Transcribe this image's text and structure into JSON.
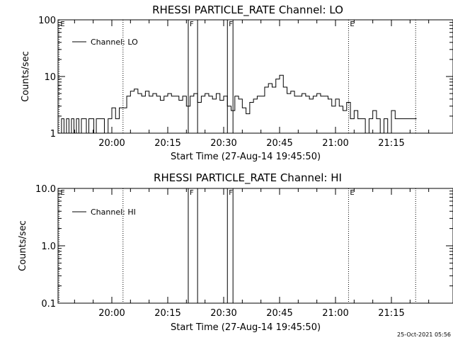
{
  "footer": {
    "timestamp": "25-Oct-2021 05:56"
  },
  "x_range": [
    "19:45:50",
    "21:25:00"
  ],
  "chart_data": [
    {
      "type": "line",
      "title": "RHESSI PARTICLE_RATE Channel: LO",
      "xlabel": "Start Time (27-Aug-14 19:45:50)",
      "ylabel": "Counts/sec",
      "yscale": "log",
      "ylim": [
        1,
        100
      ],
      "ytick_labels": [
        "1",
        "10",
        "100"
      ],
      "ytick_values": [
        1,
        10,
        100
      ],
      "xtick_labels": [
        "20:00",
        "20:15",
        "20:30",
        "20:45",
        "21:00",
        "21:15"
      ],
      "xtick_values": [
        "20:00",
        "20:15",
        "20:30",
        "20:45",
        "21:00",
        "21:15"
      ],
      "legend": {
        "label": "Channel: LO",
        "placement": "top-left"
      },
      "markers": [
        {
          "label": "E",
          "time": "19:45:50",
          "style": "dotted"
        },
        {
          "label": "",
          "time": "20:03:00",
          "style": "dotted"
        },
        {
          "label": "F",
          "time": "20:20:30",
          "style": "solid"
        },
        {
          "label": "",
          "time": "20:23:00",
          "style": "solid"
        },
        {
          "label": "F",
          "time": "20:31:00",
          "style": "solid"
        },
        {
          "label": "",
          "time": "20:32:30",
          "style": "solid"
        },
        {
          "label": "E",
          "time": "21:03:30",
          "style": "dotted"
        },
        {
          "label": "",
          "time": "21:21:30",
          "style": "dotted"
        }
      ],
      "series": [
        {
          "name": "Channel: LO",
          "x": [
            "19:45:50",
            "19:46:30",
            "19:47:10",
            "19:47:50",
            "19:48:30",
            "19:49:10",
            "19:49:50",
            "19:50:30",
            "19:51:10",
            "19:51:50",
            "19:52:30",
            "19:53:10",
            "19:53:50",
            "19:54:30",
            "19:55:10",
            "19:55:50",
            "19:56:30",
            "19:57:10",
            "19:58:00",
            "19:59:00",
            "20:00:00",
            "20:01:00",
            "20:02:00",
            "20:03:00",
            "20:04:00",
            "20:05:00",
            "20:06:00",
            "20:07:00",
            "20:08:00",
            "20:09:00",
            "20:10:00",
            "20:11:00",
            "20:12:00",
            "20:13:00",
            "20:14:00",
            "20:15:00",
            "20:16:00",
            "20:17:00",
            "20:18:00",
            "20:19:00",
            "20:20:00",
            "20:21:00",
            "20:22:00",
            "20:23:00",
            "20:24:00",
            "20:25:00",
            "20:26:00",
            "20:27:00",
            "20:28:00",
            "20:29:00",
            "20:30:00",
            "20:31:00",
            "20:32:00",
            "20:33:00",
            "20:34:00",
            "20:35:00",
            "20:36:00",
            "20:37:00",
            "20:38:00",
            "20:39:00",
            "20:40:00",
            "20:41:00",
            "20:42:00",
            "20:43:00",
            "20:44:00",
            "20:45:00",
            "20:46:00",
            "20:47:00",
            "20:48:00",
            "20:49:00",
            "20:50:00",
            "20:51:00",
            "20:52:00",
            "20:53:00",
            "20:54:00",
            "20:55:00",
            "20:56:00",
            "20:57:00",
            "20:58:00",
            "20:59:00",
            "21:00:00",
            "21:01:00",
            "21:02:00",
            "21:03:00",
            "21:04:00",
            "21:05:00",
            "21:06:00",
            "21:07:00",
            "21:08:00",
            "21:09:00",
            "21:10:00",
            "21:11:00",
            "21:12:00",
            "21:13:00",
            "21:14:00",
            "21:15:00",
            "21:16:00",
            "21:17:00",
            "21:18:00",
            "21:19:00",
            "21:20:00",
            "21:21:00"
          ],
          "y": [
            1.0,
            1.8,
            1.0,
            1.8,
            1.0,
            1.8,
            1.0,
            1.8,
            1.0,
            1.8,
            1.8,
            1.0,
            1.8,
            1.8,
            1.0,
            1.8,
            1.8,
            1.8,
            1.0,
            1.8,
            2.8,
            1.8,
            2.8,
            2.8,
            4.5,
            5.5,
            6.0,
            5.0,
            4.5,
            5.5,
            4.5,
            5.0,
            4.5,
            3.8,
            4.5,
            5.0,
            4.5,
            4.5,
            3.8,
            4.5,
            3.0,
            4.5,
            5.0,
            3.5,
            4.5,
            5.0,
            4.5,
            4.0,
            5.0,
            3.8,
            4.5,
            3.0,
            2.5,
            4.5,
            4.0,
            2.8,
            2.2,
            3.5,
            4.0,
            4.5,
            4.5,
            6.5,
            7.5,
            6.5,
            9.0,
            10.5,
            6.5,
            5.0,
            5.5,
            4.5,
            4.5,
            5.0,
            4.5,
            4.0,
            4.5,
            5.0,
            4.5,
            4.5,
            4.0,
            3.0,
            4.0,
            3.0,
            2.5,
            3.5,
            1.8,
            2.5,
            1.8,
            1.8,
            1.0,
            1.8,
            2.5,
            1.8,
            1.0,
            1.8,
            1.0,
            2.5,
            1.8,
            1.8,
            1.8,
            1.8,
            1.8,
            1.8
          ]
        }
      ]
    },
    {
      "type": "line",
      "title": "RHESSI PARTICLE_RATE Channel: HI",
      "xlabel": "Start Time (27-Aug-14 19:45:50)",
      "ylabel": "Counts/sec",
      "yscale": "log",
      "ylim": [
        0.1,
        10
      ],
      "ytick_labels": [
        "0.1",
        "1.0",
        "10.0"
      ],
      "ytick_values": [
        0.1,
        1,
        10
      ],
      "xtick_labels": [
        "20:00",
        "20:15",
        "20:30",
        "20:45",
        "21:00",
        "21:15"
      ],
      "xtick_values": [
        "20:00",
        "20:15",
        "20:30",
        "20:45",
        "21:00",
        "21:15"
      ],
      "legend": {
        "label": "Channel: HI",
        "placement": "top-left"
      },
      "markers": [
        {
          "label": "E",
          "time": "19:45:50",
          "style": "dotted"
        },
        {
          "label": "",
          "time": "20:03:00",
          "style": "dotted"
        },
        {
          "label": "F",
          "time": "20:20:30",
          "style": "solid"
        },
        {
          "label": "",
          "time": "20:23:00",
          "style": "solid"
        },
        {
          "label": "F",
          "time": "20:31:00",
          "style": "solid"
        },
        {
          "label": "",
          "time": "20:32:30",
          "style": "solid"
        },
        {
          "label": "E",
          "time": "21:03:30",
          "style": "dotted"
        },
        {
          "label": "",
          "time": "21:21:30",
          "style": "dotted"
        }
      ],
      "series": [
        {
          "name": "Channel: HI",
          "x": [],
          "y": []
        }
      ]
    }
  ]
}
